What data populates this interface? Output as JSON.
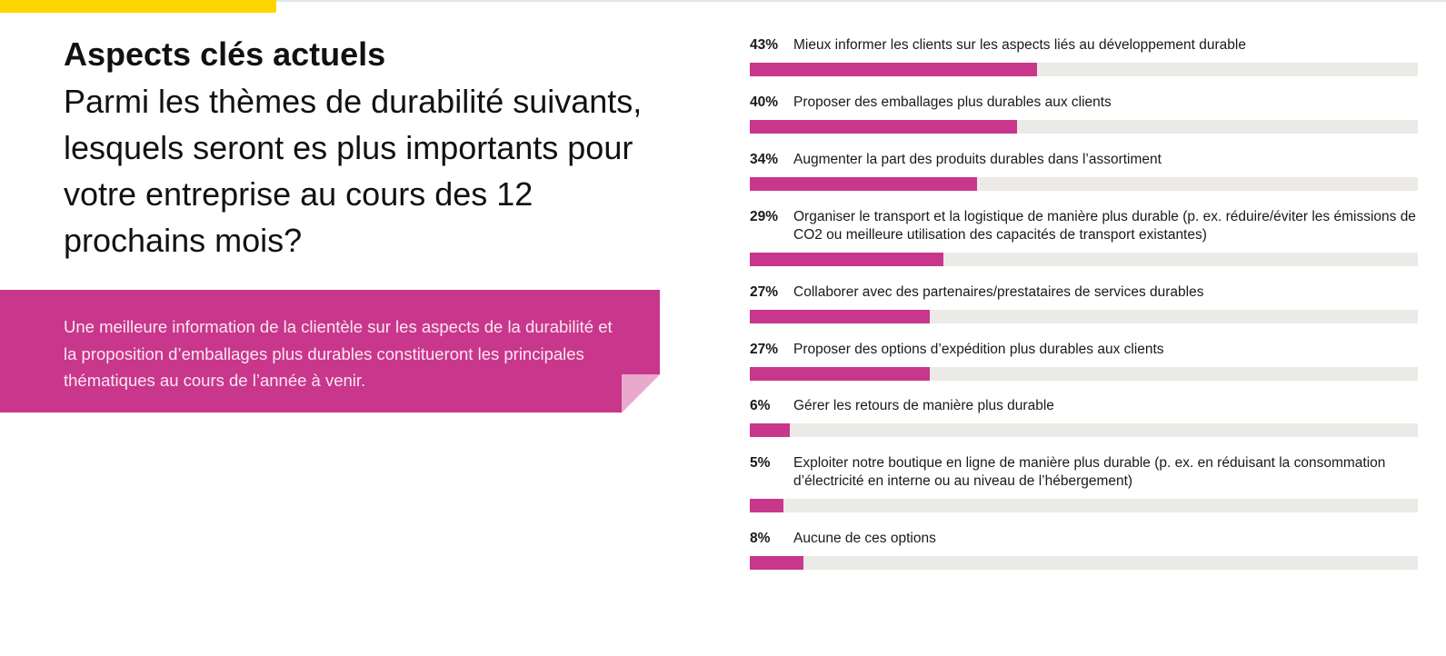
{
  "header": {
    "title": "Aspects clés actuels",
    "question": "Parmi les thèmes de durabilité suivants, lesquels seront es plus importants pour votre entreprise au cours des 12 prochains mois?"
  },
  "callout": {
    "text": "Une meilleure information de la clientèle sur les aspects de la durabilité et la proposition d’emballages plus durables constitueront les principales thématiques au cours de l’année à venir."
  },
  "colors": {
    "accent_yellow": "#ffd500",
    "bar_fill": "#c8378b",
    "bar_track": "#ebeae6",
    "callout_bg": "#c8378b"
  },
  "chart_data": {
    "type": "bar",
    "orientation": "horizontal",
    "categories": [
      "Mieux informer les clients sur les aspects liés au développement durable",
      "Proposer des emballages plus durables aux clients",
      "Augmenter la part des produits durables dans l’assortiment",
      "Organiser le transport et la logistique de manière plus durable (p. ex. réduire/éviter les émissions de CO2 ou meilleure utilisation des capacités de transport existantes)",
      "Collaborer avec des partenaires/prestataires de services durables",
      "Proposer des options d’expédition plus durables aux clients",
      "Gérer les retours de manière plus durable",
      "Exploiter notre boutique en ligne de manière plus durable (p. ex. en réduisant la consommation d’électricité en interne ou au niveau de l’hébergement)",
      "Aucune de ces options"
    ],
    "values": [
      43,
      40,
      34,
      29,
      27,
      27,
      6,
      5,
      8
    ],
    "value_labels": [
      "43%",
      "40%",
      "34%",
      "29%",
      "27%",
      "27%",
      "6%",
      "5%",
      "8%"
    ],
    "xlim": [
      0,
      100
    ],
    "unit": "%"
  }
}
